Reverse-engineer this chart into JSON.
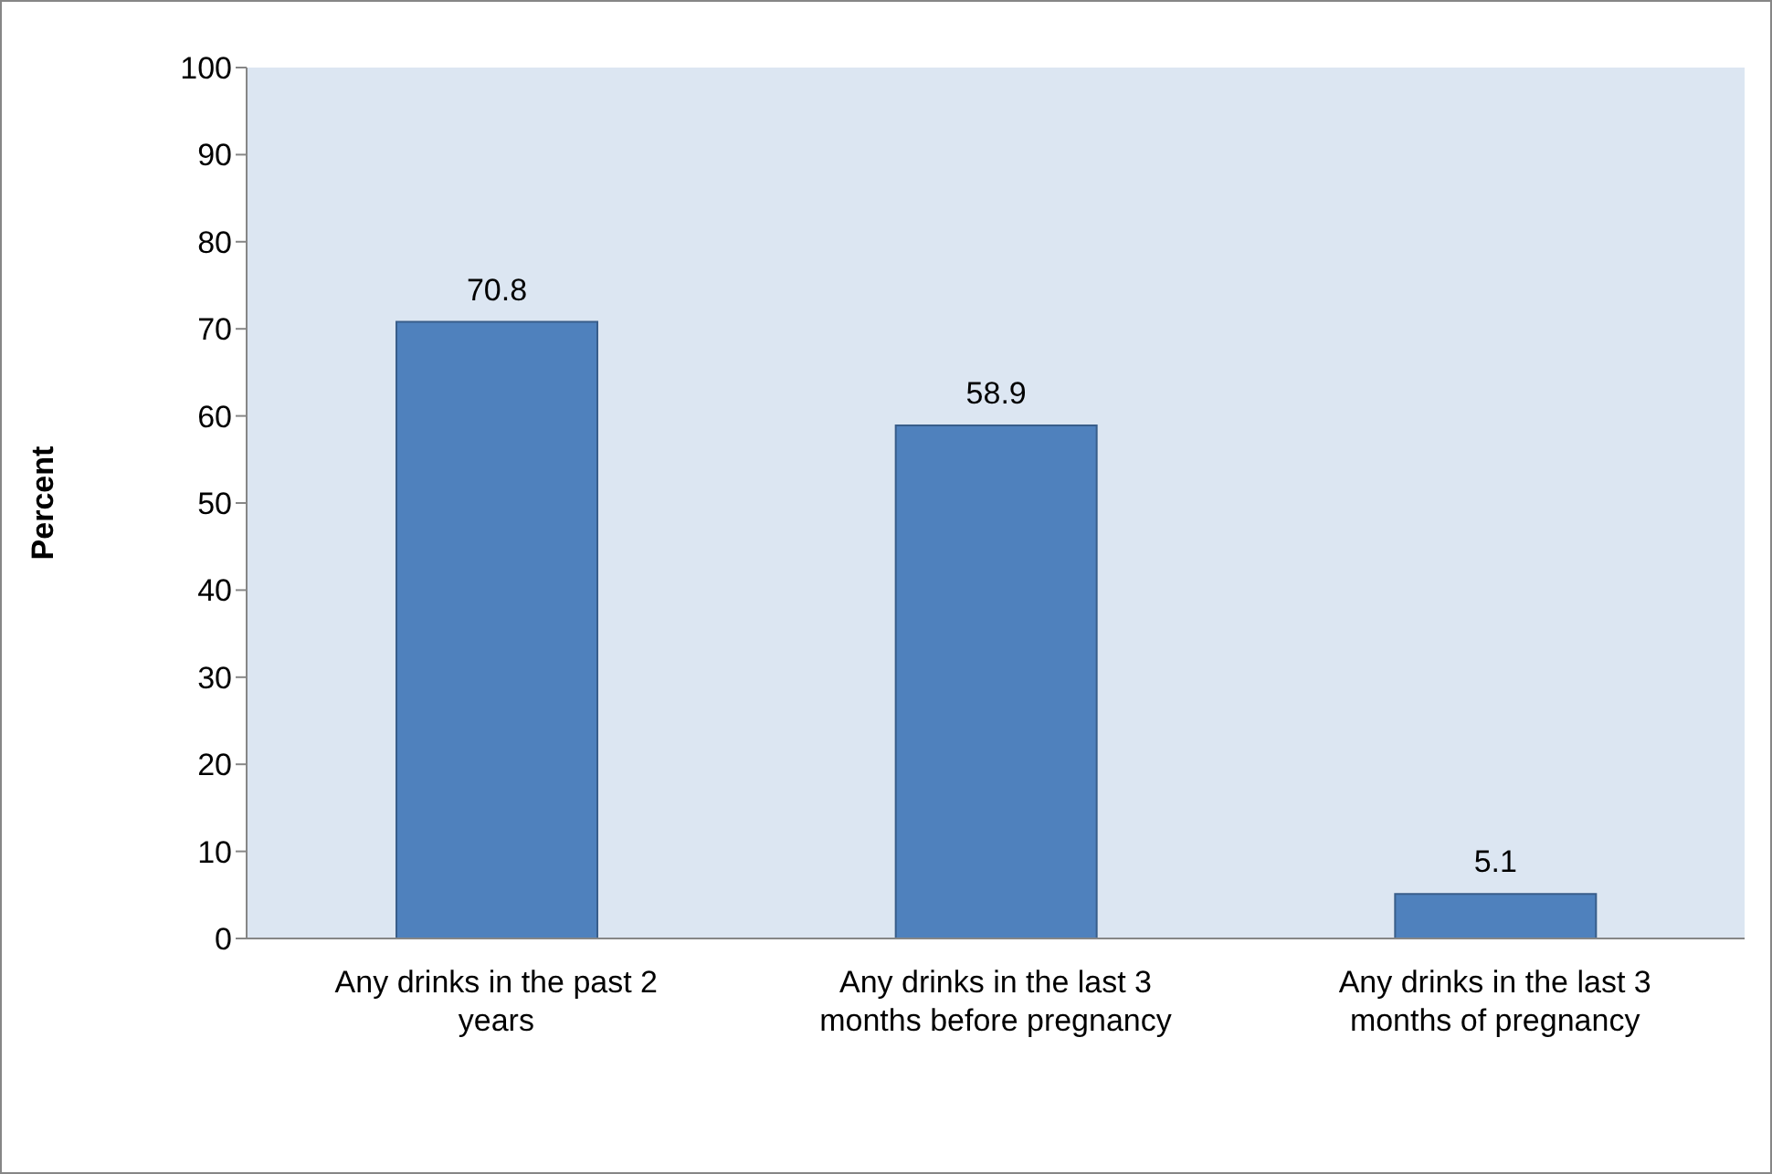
{
  "chart_data": {
    "type": "bar",
    "ylabel": "Percent",
    "categories": [
      "Any drinks in the past 2 years",
      "Any drinks in the last 3 months before pregnancy",
      "Any drinks in the last 3 months of pregnancy"
    ],
    "values": [
      70.8,
      58.9,
      5.1
    ],
    "color": "#4f81bd",
    "ylim": [
      0,
      100
    ],
    "yticks": [
      0,
      10,
      20,
      30,
      40,
      50,
      60,
      70,
      80,
      90,
      100
    ],
    "grid": false,
    "data_labels": true
  }
}
